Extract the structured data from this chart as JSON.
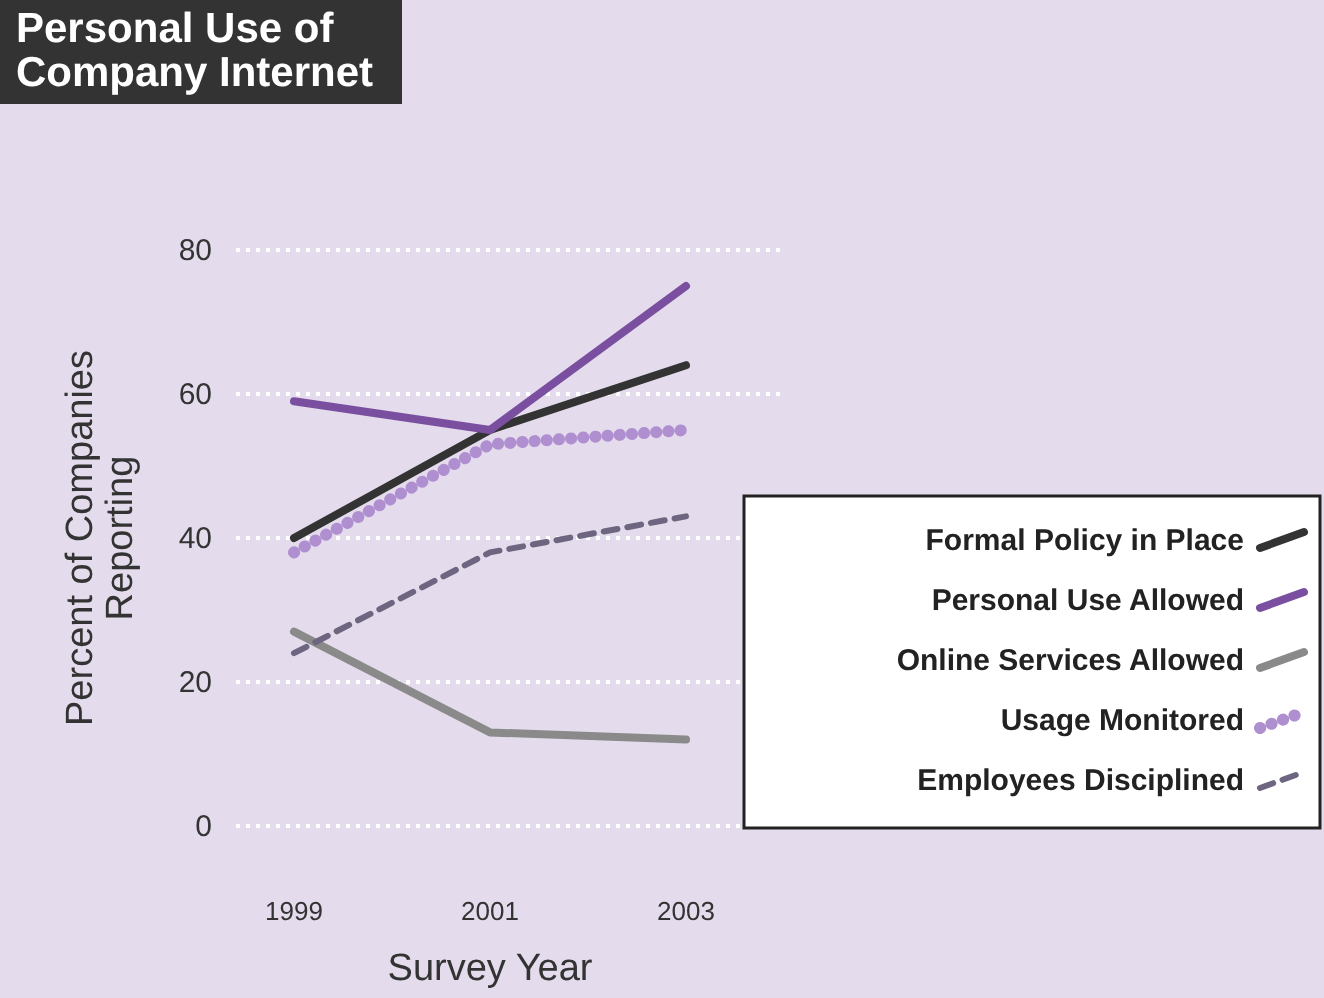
{
  "chart_data": {
    "type": "line",
    "title": "Personal Use of Company Internet",
    "xlabel": "Survey Year",
    "ylabel": "Percent of Companies Reporting",
    "categories": [
      "1999",
      "2001",
      "2003"
    ],
    "ylim": [
      0,
      80
    ],
    "yticks": [
      0,
      20,
      40,
      60,
      80
    ],
    "grid": "y",
    "legend": "right",
    "series": [
      {
        "name": "Formal Policy in Place",
        "color": "#333333",
        "line_style": "solid",
        "values": [
          40,
          55,
          64
        ]
      },
      {
        "name": "Personal Use Allowed",
        "color": "#7b4fa0",
        "line_style": "solid",
        "values": [
          59,
          55,
          75
        ]
      },
      {
        "name": "Online Services Allowed",
        "color": "#8a8a8a",
        "line_style": "solid",
        "values": [
          27,
          13,
          12
        ]
      },
      {
        "name": "Usage Monitored",
        "color": "#b08fd0",
        "line_style": "dotted",
        "values": [
          38,
          53,
          55
        ]
      },
      {
        "name": "Employees Disciplined",
        "color": "#6e6680",
        "line_style": "dashed",
        "values": [
          24,
          38,
          43
        ]
      }
    ]
  }
}
